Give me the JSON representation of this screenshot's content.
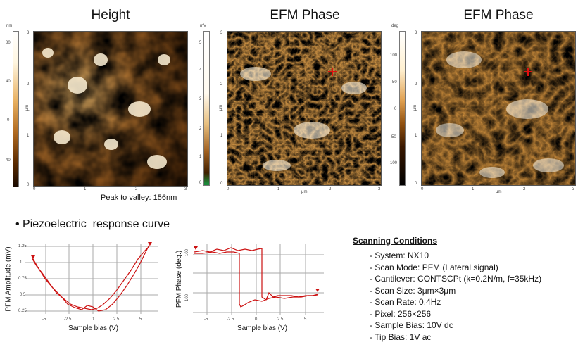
{
  "panels": [
    {
      "title": "Height",
      "unit": "nm",
      "ticks": [
        "80",
        "40",
        "0",
        "-40"
      ],
      "axis_unit": "μm",
      "y_ticks": [
        "3",
        "2",
        "1",
        "0"
      ],
      "x_ticks": [
        "0",
        "1",
        "2",
        "3"
      ]
    },
    {
      "title": "EFM Phase",
      "unit": "mV",
      "ticks": [
        "5",
        "4",
        "3",
        "2",
        "1",
        "0"
      ],
      "axis_unit": "μm",
      "y_ticks": [
        "3",
        "2",
        "1",
        "0"
      ],
      "x_ticks": [
        "0",
        "1",
        "2",
        "3"
      ]
    },
    {
      "title": "EFM Phase",
      "unit": "deg",
      "ticks": [
        "100",
        "50",
        "0",
        "-50",
        "-100"
      ],
      "axis_unit": "μm",
      "y_ticks": [
        "3",
        "2",
        "1",
        "0"
      ],
      "x_ticks": [
        "0",
        "1",
        "2",
        "3"
      ]
    }
  ],
  "peak_to_valley": "Peak to valley: 156nm",
  "section_bullet": "• Piezoelectric  response curve",
  "amp_chart": {
    "ylabel": "PFM Amplitude (mV)",
    "xlabel": "Sample bias (V)",
    "y_ticks": [
      "1.25",
      "1",
      "0.75",
      "0.5",
      "0.25"
    ],
    "x_ticks": [
      "-5",
      "-2.5",
      "0",
      "2.5",
      "5"
    ]
  },
  "phase_chart": {
    "ylabel": "PFM Phase (deg.)",
    "xlabel": "Sample bias (V)",
    "y_ticks": [
      "100",
      "100"
    ],
    "x_ticks": [
      "-5",
      "-2.5",
      "0",
      "2.5",
      "5"
    ]
  },
  "conditions": {
    "title": "Scanning Conditions",
    "items": [
      "- System: NX10",
      "- Scan Mode: PFM (Lateral signal)",
      "- Cantilever: CONTSCPt (k=0.2N/m, f=35kHz)",
      "- Scan Size: 3μm×3μm",
      "- Scan Rate: 0.4Hz",
      "- Pixel: 256×256",
      "- Sample Bias: 10V dc",
      "- Tip Bias: 1V ac"
    ]
  }
}
